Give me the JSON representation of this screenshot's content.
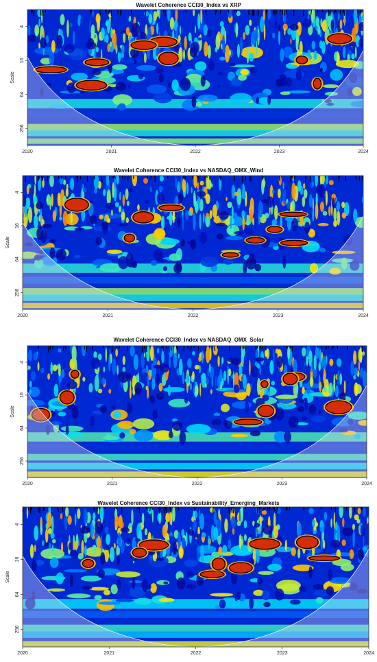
{
  "chart_data": [
    {
      "type": "heatmap",
      "title": "Wavelet Coherence CCI30_Index vs  XRP",
      "ylabel": "Scale",
      "x_ticks": [
        "2020",
        "2021",
        "2022",
        "2023",
        "2024"
      ],
      "y_ticks": [
        "4",
        "16",
        "64",
        "256"
      ],
      "y_scale": "log2",
      "xlim": [
        2020,
        2024
      ],
      "ylim": [
        2,
        512
      ]
    },
    {
      "type": "heatmap",
      "title": "Wavelet Coherence CCI30_Index vs  NASDAQ_OMX_Wind",
      "ylabel": "Scale",
      "x_ticks": [
        "2020",
        "2021",
        "2022",
        "2023",
        "2024"
      ],
      "y_ticks": [
        "4",
        "16",
        "64",
        "256"
      ],
      "y_scale": "log2",
      "xlim": [
        2020,
        2024
      ],
      "ylim": [
        2,
        512
      ]
    },
    {
      "type": "heatmap",
      "title": "Wavelet Coherence CCI30_Index vs NASDAQ_OMX_Solar",
      "ylabel": "Scale",
      "x_ticks": [
        "2020",
        "2021",
        "2022",
        "2023",
        "2024"
      ],
      "y_ticks": [
        "4",
        "16",
        "64",
        "256"
      ],
      "y_scale": "log2",
      "xlim": [
        2020,
        2024
      ],
      "ylim": [
        2,
        512
      ]
    },
    {
      "type": "heatmap",
      "title": "Wavelet Coherence CCI30_Index vs Sustainability_Emerging_Markets",
      "ylabel": "Scale",
      "x_ticks": [
        "2020",
        "2021",
        "2022",
        "2023",
        "2024"
      ],
      "y_ticks": [
        "4",
        "16",
        "64",
        "256"
      ],
      "y_scale": "log2",
      "xlim": [
        2020,
        2024
      ],
      "ylim": [
        2,
        512
      ]
    }
  ],
  "colors": {
    "low": "#00008b",
    "mid_low": "#0a5cff",
    "mid": "#00d6ff",
    "mid_high": "#ffe600",
    "high": "#d42a0c",
    "contour": "#000000",
    "cone": "#d8d8e8"
  }
}
